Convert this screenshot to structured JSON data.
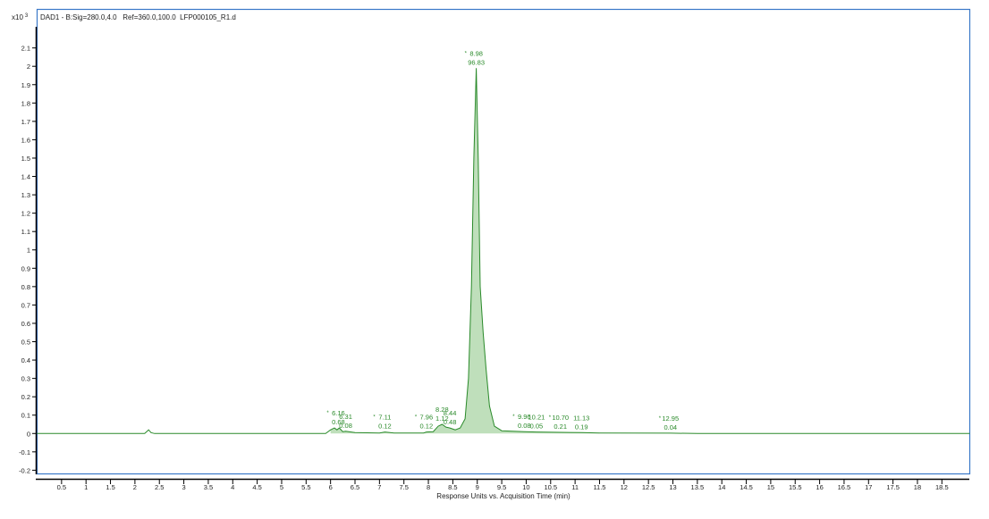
{
  "chart_data": {
    "type": "line",
    "title": "DAD1 - B:Sig=280.0,4.0   Ref=360.0,100.0  LFP000105_R1.d",
    "y_multiplier": "x10",
    "y_multiplier_exp": "3",
    "xlabel": "Response Units vs. Acquisition Time (min)",
    "xlim": [
      0,
      19.07
    ],
    "ylim": [
      -0.22,
      2.31
    ],
    "x_ticks": [
      "0.5",
      "1",
      "1.5",
      "2",
      "2.5",
      "3",
      "3.5",
      "4",
      "4.5",
      "5",
      "5.5",
      "6",
      "6.5",
      "7",
      "7.5",
      "8",
      "8.5",
      "9",
      "9.5",
      "10",
      "10.5",
      "11",
      "11.5",
      "12",
      "12.5",
      "13",
      "13.5",
      "14",
      "14.5",
      "15",
      "15.5",
      "16",
      "16.5",
      "17",
      "17.5",
      "18",
      "18.5"
    ],
    "y_ticks": [
      "2.1",
      "2",
      "1.9",
      "1.8",
      "1.7",
      "1.6",
      "1.5",
      "1.4",
      "1.3",
      "1.2",
      "1.1",
      "1",
      "0.9",
      "0.8",
      "0.7",
      "0.6",
      "0.5",
      "0.4",
      "0.3",
      "0.2",
      "0.1",
      "0",
      "-0.1",
      "-0.2"
    ],
    "grid": false,
    "line_color": "#2a8a2a",
    "fill_color": "#b8dcb4",
    "frame_color": "#3a78c8",
    "trace": [
      [
        0,
        0
      ],
      [
        2.2,
        0
      ],
      [
        2.28,
        0.02
      ],
      [
        2.33,
        0.005
      ],
      [
        2.4,
        0
      ],
      [
        5.9,
        0
      ],
      [
        6.0,
        0.02
      ],
      [
        6.08,
        0.03
      ],
      [
        6.13,
        0.02
      ],
      [
        6.18,
        0.03
      ],
      [
        6.25,
        0.01
      ],
      [
        6.31,
        0.012
      ],
      [
        6.5,
        0.005
      ],
      [
        7.0,
        0.003
      ],
      [
        7.11,
        0.008
      ],
      [
        7.3,
        0.003
      ],
      [
        7.9,
        0.003
      ],
      [
        7.96,
        0.008
      ],
      [
        8.1,
        0.01
      ],
      [
        8.2,
        0.04
      ],
      [
        8.28,
        0.05
      ],
      [
        8.36,
        0.035
      ],
      [
        8.44,
        0.03
      ],
      [
        8.55,
        0.02
      ],
      [
        8.65,
        0.03
      ],
      [
        8.75,
        0.08
      ],
      [
        8.82,
        0.3
      ],
      [
        8.88,
        0.8
      ],
      [
        8.93,
        1.5
      ],
      [
        8.98,
        1.99
      ],
      [
        9.02,
        1.5
      ],
      [
        9.06,
        0.8
      ],
      [
        9.12,
        0.55
      ],
      [
        9.18,
        0.35
      ],
      [
        9.25,
        0.15
      ],
      [
        9.35,
        0.04
      ],
      [
        9.5,
        0.015
      ],
      [
        9.96,
        0.01
      ],
      [
        10.21,
        0.008
      ],
      [
        10.7,
        0.006
      ],
      [
        11.13,
        0.005
      ],
      [
        11.5,
        0.003
      ],
      [
        12.95,
        0.002
      ],
      [
        13.5,
        0
      ],
      [
        19.07,
        0
      ]
    ],
    "peaks": [
      {
        "rt": "6.16",
        "area": "0.68",
        "x": 6.16,
        "y": 0.03,
        "star": true
      },
      {
        "rt": "6.31",
        "area": "0.08",
        "x": 6.31,
        "y": 0.012,
        "star": false
      },
      {
        "rt": "7.11",
        "area": "0.12",
        "x": 7.11,
        "y": 0.008,
        "star": true
      },
      {
        "rt": "7.96",
        "area": "0.12",
        "x": 7.96,
        "y": 0.008,
        "star": true
      },
      {
        "rt": "8.28",
        "area": "1.12",
        "x": 8.28,
        "y": 0.05,
        "star": false
      },
      {
        "rt": "8.44",
        "area": "0.48",
        "x": 8.44,
        "y": 0.03,
        "star": false
      },
      {
        "rt": "8.98",
        "area": "96.83",
        "x": 8.98,
        "y": 1.99,
        "star": true
      },
      {
        "rt": "9.96",
        "area": "0.08",
        "x": 9.96,
        "y": 0.01,
        "star": true
      },
      {
        "rt": "10.21",
        "area": "0.05",
        "x": 10.21,
        "y": 0.008,
        "star": false
      },
      {
        "rt": "10.70",
        "area": "0.21",
        "x": 10.7,
        "y": 0.006,
        "star": true
      },
      {
        "rt": "11.13",
        "area": "0.19",
        "x": 11.13,
        "y": 0.005,
        "star": false
      },
      {
        "rt": "12.95",
        "area": "0.04",
        "x": 12.95,
        "y": 0.002,
        "star": true
      }
    ]
  }
}
